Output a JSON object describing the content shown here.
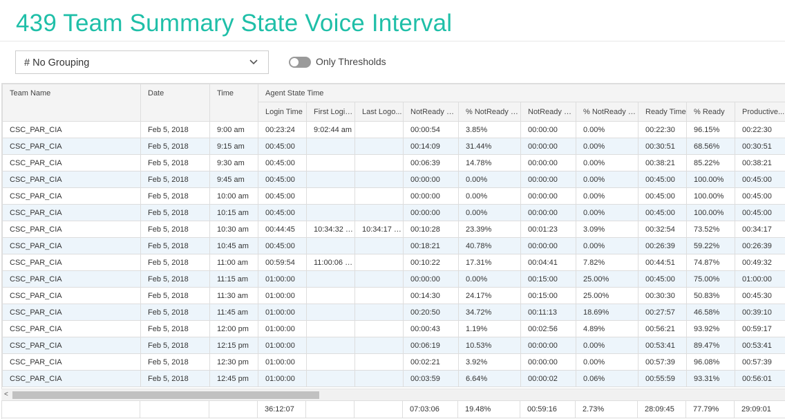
{
  "page": {
    "title": "439 Team Summary State Voice Interval"
  },
  "toolbar": {
    "grouping": "# No Grouping",
    "toggle_label": "Only Thresholds",
    "toggle_on": false
  },
  "table": {
    "fixed_headers": [
      "Team Name",
      "Date",
      "Time"
    ],
    "group_header": "Agent State Time",
    "sub_headers": [
      "Login Time",
      "First Login...",
      "Last Logo...",
      "NotReady N...",
      "% NotReady N...",
      "NotReady Pr...",
      "% NotReady Pr...",
      "Ready Time",
      "% Ready",
      "Productive..."
    ],
    "rows": [
      [
        "CSC_PAR_CIA",
        "Feb 5, 2018",
        "9:00 am",
        "00:23:24",
        "9:02:44 am",
        "",
        "00:00:54",
        "3.85%",
        "00:00:00",
        "0.00%",
        "00:22:30",
        "96.15%",
        "00:22:30"
      ],
      [
        "CSC_PAR_CIA",
        "Feb 5, 2018",
        "9:15 am",
        "00:45:00",
        "",
        "",
        "00:14:09",
        "31.44%",
        "00:00:00",
        "0.00%",
        "00:30:51",
        "68.56%",
        "00:30:51"
      ],
      [
        "CSC_PAR_CIA",
        "Feb 5, 2018",
        "9:30 am",
        "00:45:00",
        "",
        "",
        "00:06:39",
        "14.78%",
        "00:00:00",
        "0.00%",
        "00:38:21",
        "85.22%",
        "00:38:21"
      ],
      [
        "CSC_PAR_CIA",
        "Feb 5, 2018",
        "9:45 am",
        "00:45:00",
        "",
        "",
        "00:00:00",
        "0.00%",
        "00:00:00",
        "0.00%",
        "00:45:00",
        "100.00%",
        "00:45:00"
      ],
      [
        "CSC_PAR_CIA",
        "Feb 5, 2018",
        "10:00 am",
        "00:45:00",
        "",
        "",
        "00:00:00",
        "0.00%",
        "00:00:00",
        "0.00%",
        "00:45:00",
        "100.00%",
        "00:45:00"
      ],
      [
        "CSC_PAR_CIA",
        "Feb 5, 2018",
        "10:15 am",
        "00:45:00",
        "",
        "",
        "00:00:00",
        "0.00%",
        "00:00:00",
        "0.00%",
        "00:45:00",
        "100.00%",
        "00:45:00"
      ],
      [
        "CSC_PAR_CIA",
        "Feb 5, 2018",
        "10:30 am",
        "00:44:45",
        "10:34:32 am",
        "10:34:17 am",
        "00:10:28",
        "23.39%",
        "00:01:23",
        "3.09%",
        "00:32:54",
        "73.52%",
        "00:34:17"
      ],
      [
        "CSC_PAR_CIA",
        "Feb 5, 2018",
        "10:45 am",
        "00:45:00",
        "",
        "",
        "00:18:21",
        "40.78%",
        "00:00:00",
        "0.00%",
        "00:26:39",
        "59.22%",
        "00:26:39"
      ],
      [
        "CSC_PAR_CIA",
        "Feb 5, 2018",
        "11:00 am",
        "00:59:54",
        "11:00:06 am",
        "",
        "00:10:22",
        "17.31%",
        "00:04:41",
        "7.82%",
        "00:44:51",
        "74.87%",
        "00:49:32"
      ],
      [
        "CSC_PAR_CIA",
        "Feb 5, 2018",
        "11:15 am",
        "01:00:00",
        "",
        "",
        "00:00:00",
        "0.00%",
        "00:15:00",
        "25.00%",
        "00:45:00",
        "75.00%",
        "01:00:00"
      ],
      [
        "CSC_PAR_CIA",
        "Feb 5, 2018",
        "11:30 am",
        "01:00:00",
        "",
        "",
        "00:14:30",
        "24.17%",
        "00:15:00",
        "25.00%",
        "00:30:30",
        "50.83%",
        "00:45:30"
      ],
      [
        "CSC_PAR_CIA",
        "Feb 5, 2018",
        "11:45 am",
        "01:00:00",
        "",
        "",
        "00:20:50",
        "34.72%",
        "00:11:13",
        "18.69%",
        "00:27:57",
        "46.58%",
        "00:39:10"
      ],
      [
        "CSC_PAR_CIA",
        "Feb 5, 2018",
        "12:00 pm",
        "01:00:00",
        "",
        "",
        "00:00:43",
        "1.19%",
        "00:02:56",
        "4.89%",
        "00:56:21",
        "93.92%",
        "00:59:17"
      ],
      [
        "CSC_PAR_CIA",
        "Feb 5, 2018",
        "12:15 pm",
        "01:00:00",
        "",
        "",
        "00:06:19",
        "10.53%",
        "00:00:00",
        "0.00%",
        "00:53:41",
        "89.47%",
        "00:53:41"
      ],
      [
        "CSC_PAR_CIA",
        "Feb 5, 2018",
        "12:30 pm",
        "01:00:00",
        "",
        "",
        "00:02:21",
        "3.92%",
        "00:00:00",
        "0.00%",
        "00:57:39",
        "96.08%",
        "00:57:39"
      ],
      [
        "CSC_PAR_CIA",
        "Feb 5, 2018",
        "12:45 pm",
        "01:00:00",
        "",
        "",
        "00:03:59",
        "6.64%",
        "00:00:02",
        "0.06%",
        "00:55:59",
        "93.31%",
        "00:56:01"
      ]
    ],
    "totals": [
      "",
      "",
      "",
      "36:12:07",
      "",
      "",
      "07:03:06",
      "19.48%",
      "00:59:16",
      "2.73%",
      "28:09:45",
      "77.79%",
      "29:09:01"
    ]
  },
  "scrollbar": {
    "left_arrow": "<"
  },
  "colors": {
    "title": "#1fbfa8",
    "row_alt": "#edf5fb",
    "header_bg": "#f4f4f4"
  }
}
